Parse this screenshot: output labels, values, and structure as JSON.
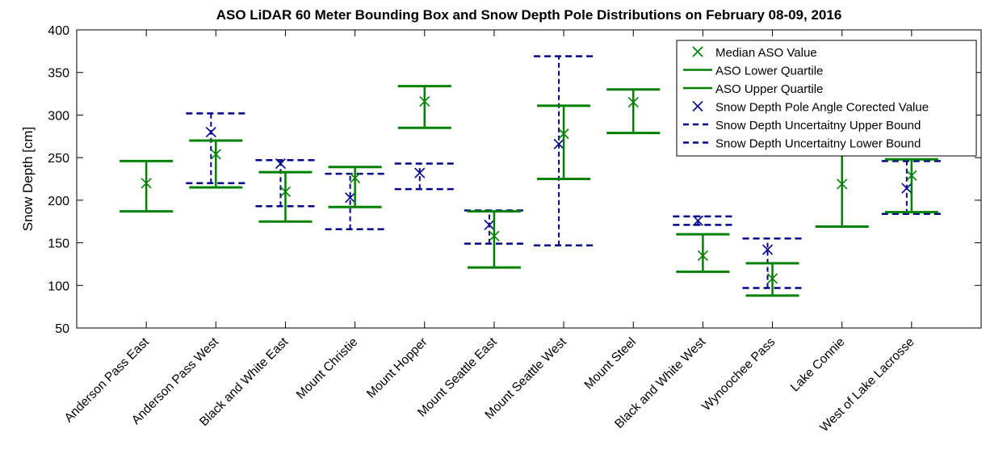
{
  "chart_data": {
    "type": "errorbar",
    "title": "ASO LiDAR 60 Meter Bounding Box and Snow Depth Pole Distributions on February 08-09, 2016",
    "ylabel": "Snow Depth [cm]",
    "xlabel": "",
    "ylim": [
      50,
      400
    ],
    "yticks": [
      50,
      100,
      150,
      200,
      250,
      300,
      350,
      400
    ],
    "grid": false,
    "legend_position": "top-right",
    "colors": {
      "aso": "#008000",
      "pole": "#00008b"
    },
    "categories": [
      "Anderson Pass East",
      "Anderson Pass West",
      "Black and White East",
      "Mount Christie",
      "Mount Hopper",
      "Mount Seattle East",
      "Mount Seattle West",
      "Mount Steel",
      "Black and White West",
      "Wynoochee Pass",
      "Lake Connie",
      "West of Lake Lacrosse"
    ],
    "series": [
      {
        "name": "Median ASO Value",
        "values": [
          220,
          254,
          210,
          226,
          316,
          158,
          278,
          315,
          135,
          108,
          219,
          229
        ]
      },
      {
        "name": "ASO Lower Quartile",
        "values": [
          187,
          215,
          175,
          192,
          285,
          121,
          225,
          279,
          116,
          88,
          169,
          186
        ]
      },
      {
        "name": "ASO Upper Quartile",
        "values": [
          246,
          270,
          233,
          239,
          334,
          187,
          311,
          330,
          160,
          126,
          257,
          248
        ]
      },
      {
        "name": "Snow Depth Pole Angle Corected Value",
        "values": [
          null,
          280,
          243,
          203,
          232,
          171,
          266,
          null,
          176,
          142,
          null,
          214
        ]
      },
      {
        "name": "Snow Depth Uncertaitny Upper Bound",
        "values": [
          null,
          302,
          247,
          231,
          243,
          188,
          369,
          null,
          181,
          155,
          null,
          246
        ]
      },
      {
        "name": "Snow Depth Uncertaitny Lower Bound",
        "values": [
          null,
          220,
          193,
          166,
          213,
          149,
          147,
          null,
          171,
          97,
          null,
          184
        ]
      }
    ]
  }
}
